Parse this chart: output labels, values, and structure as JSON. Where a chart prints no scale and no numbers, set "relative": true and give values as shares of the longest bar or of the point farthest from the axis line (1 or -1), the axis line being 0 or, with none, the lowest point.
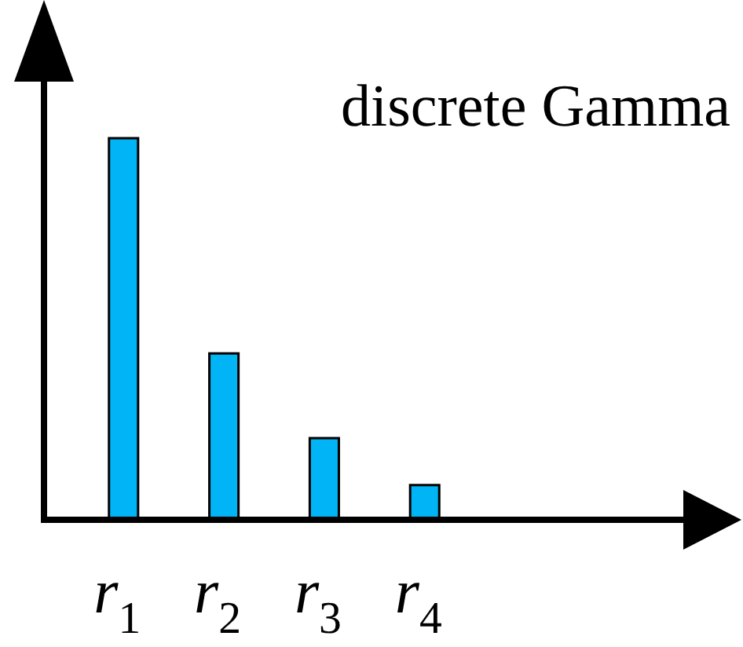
{
  "chart_data": {
    "type": "bar",
    "title": "discrete Gamma",
    "categories": [
      "r$_{1}$",
      "r$_{2}$",
      "r$_{3}$",
      "r$_{4}$"
    ],
    "values": [
      1,
      0.436,
      0.214,
      0.091
    ],
    "relative": true,
    "color": "#00b4f5"
  }
}
